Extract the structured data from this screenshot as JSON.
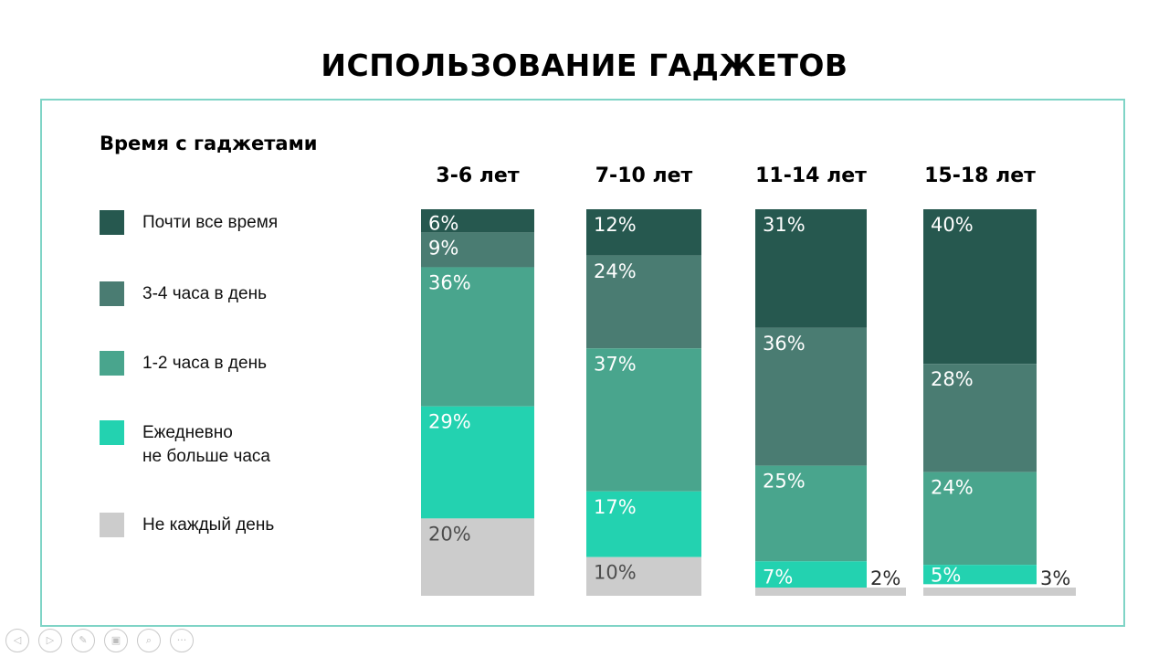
{
  "title": "ИСПОЛЬЗОВАНИЕ ГАДЖЕТОВ",
  "legend": {
    "title": "Время с гаджетами",
    "items": [
      {
        "label": "Почти все время",
        "color": "#26584f"
      },
      {
        "label": "3-4 часа в день",
        "color": "#4a7c72"
      },
      {
        "label": "1-2 часа в день",
        "color": "#49a58d"
      },
      {
        "label": "Ежедневно\nне больше часа",
        "color": "#23d2b0"
      },
      {
        "label": "Не каждый день",
        "color": "#cccccc"
      }
    ]
  },
  "toolbar": {
    "buttons": [
      {
        "icon": "prev-arrow-icon",
        "glyph": "◁"
      },
      {
        "icon": "next-arrow-icon",
        "glyph": "▷"
      },
      {
        "icon": "pen-icon",
        "glyph": "✎"
      },
      {
        "icon": "slides-icon",
        "glyph": "▣"
      },
      {
        "icon": "zoom-icon",
        "glyph": "⌕"
      },
      {
        "icon": "more-icon",
        "glyph": "···"
      }
    ]
  },
  "chart_data": {
    "type": "bar",
    "stacked": true,
    "categories": [
      "3-6 лет",
      "7-10 лет",
      "11-14 лет",
      "15-18 лет"
    ],
    "series": [
      {
        "name": "Почти все время",
        "color": "#26584f",
        "values": [
          6,
          12,
          31,
          40
        ],
        "labels": [
          "6%",
          "12%",
          "31%",
          "40%"
        ]
      },
      {
        "name": "3-4 часа в день",
        "color": "#4a7c72",
        "values": [
          9,
          24,
          36,
          28
        ],
        "labels": [
          "9%",
          "24%",
          "36%",
          "28%"
        ]
      },
      {
        "name": "1-2 часа в день",
        "color": "#49a58d",
        "values": [
          36,
          37,
          25,
          24
        ],
        "labels": [
          "36%",
          "37%",
          "25%",
          "24%"
        ]
      },
      {
        "name": "Ежедневно не больше часа",
        "color": "#23d2b0",
        "values": [
          29,
          17,
          7,
          5
        ],
        "labels": [
          "29%",
          "17%",
          "7%",
          "5%"
        ]
      },
      {
        "name": "Не каждый день",
        "color": "#cccccc",
        "values": [
          20,
          10,
          2,
          3
        ],
        "labels": [
          "20%",
          "10%",
          "2%",
          "3%"
        ]
      }
    ],
    "ylim": [
      0,
      100
    ]
  }
}
